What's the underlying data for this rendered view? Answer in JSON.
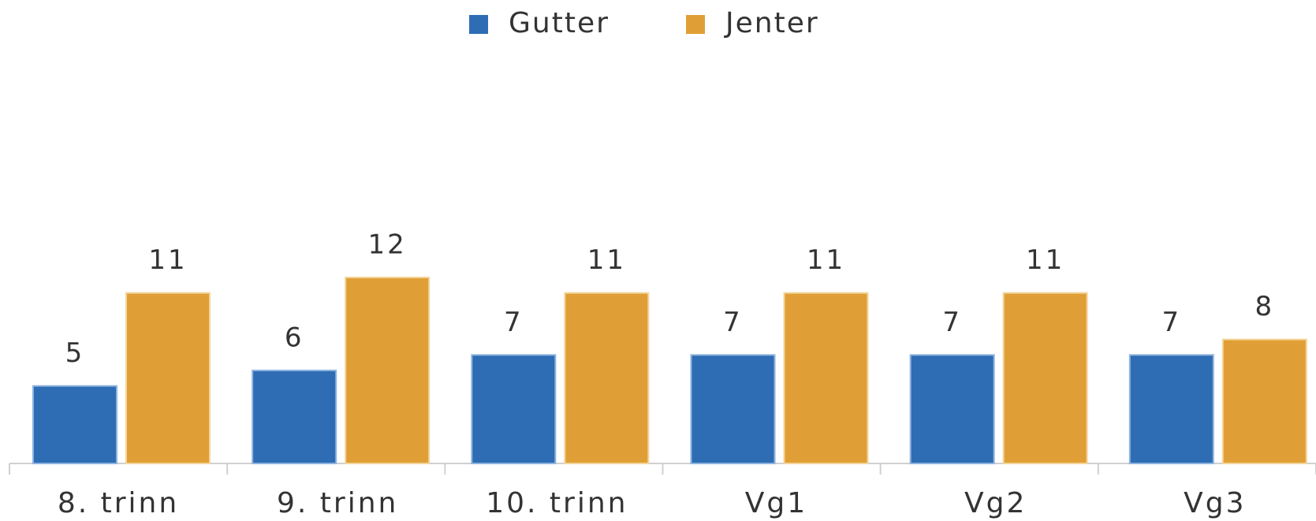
{
  "chart_data": {
    "type": "bar",
    "categories": [
      "8. trinn",
      "9. trinn",
      "10. trinn",
      "Vg1",
      "Vg2",
      "Vg3"
    ],
    "series": [
      {
        "name": "Gutter",
        "color": "#2e6db4",
        "values": [
          5,
          6,
          7,
          7,
          7,
          7
        ]
      },
      {
        "name": "Jenter",
        "color": "#e09f36",
        "values": [
          11,
          12,
          11,
          11,
          11,
          8
        ]
      }
    ],
    "legend": "top"
  }
}
